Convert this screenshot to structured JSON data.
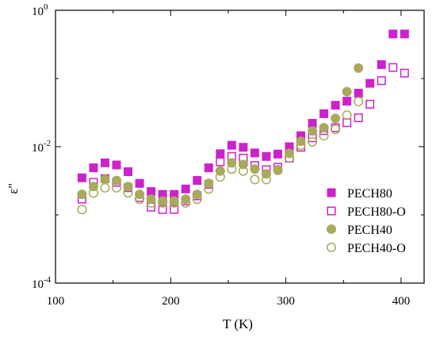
{
  "chart_data": {
    "type": "scatter",
    "title": "",
    "xlabel": "T (K)",
    "ylabel": "ε''",
    "xlim": [
      100,
      420
    ],
    "ylim": [
      0.0001,
      1
    ],
    "yscale": "log",
    "grid": false,
    "legend_position": "bottom-right",
    "x_ticks": [
      {
        "value": 100,
        "label": "100"
      },
      {
        "value": 200,
        "label": "200"
      },
      {
        "value": 300,
        "label": "300"
      },
      {
        "value": 400,
        "label": "400"
      }
    ],
    "y_ticks": [
      {
        "value": 0.0001,
        "base": "10",
        "exp": "-4"
      },
      {
        "value": 0.01,
        "base": "10",
        "exp": "-2"
      },
      {
        "value": 1,
        "base": "10",
        "exp": "0"
      }
    ],
    "series": [
      {
        "name": "PECH80",
        "marker": "square",
        "filled": true,
        "color": "#cc22cc",
        "points": [
          [
            123,
            0.0035
          ],
          [
            133,
            0.0049
          ],
          [
            143,
            0.0058
          ],
          [
            153,
            0.0054
          ],
          [
            163,
            0.0043
          ],
          [
            173,
            0.0029
          ],
          [
            183,
            0.0022
          ],
          [
            193,
            0.002
          ],
          [
            203,
            0.002
          ],
          [
            213,
            0.0024
          ],
          [
            223,
            0.0032
          ],
          [
            233,
            0.0049
          ],
          [
            243,
            0.0079
          ],
          [
            253,
            0.0105
          ],
          [
            263,
            0.0098
          ],
          [
            273,
            0.0081
          ],
          [
            283,
            0.0072
          ],
          [
            293,
            0.0078
          ],
          [
            303,
            0.01
          ],
          [
            313,
            0.0145
          ],
          [
            323,
            0.022
          ],
          [
            333,
            0.0305
          ],
          [
            343,
            0.0405
          ],
          [
            353,
            0.0465
          ],
          [
            363,
            0.061
          ],
          [
            373,
            0.085
          ],
          [
            383,
            0.16
          ],
          [
            393,
            0.45
          ],
          [
            403,
            0.45
          ]
        ]
      },
      {
        "name": "PECH80-O",
        "marker": "square",
        "filled": false,
        "color": "#cc22cc",
        "points": [
          [
            123,
            0.0017
          ],
          [
            133,
            0.003
          ],
          [
            143,
            0.0034
          ],
          [
            153,
            0.003
          ],
          [
            163,
            0.0025
          ],
          [
            173,
            0.0018
          ],
          [
            183,
            0.0013
          ],
          [
            193,
            0.0012
          ],
          [
            203,
            0.0012
          ],
          [
            213,
            0.0016
          ],
          [
            223,
            0.0019
          ],
          [
            233,
            0.0028
          ],
          [
            243,
            0.006
          ],
          [
            253,
            0.0072
          ],
          [
            263,
            0.0068
          ],
          [
            273,
            0.0053
          ],
          [
            283,
            0.0046
          ],
          [
            293,
            0.005
          ],
          [
            303,
            0.0068
          ],
          [
            313,
            0.0098
          ],
          [
            323,
            0.0135
          ],
          [
            333,
            0.0172
          ],
          [
            343,
            0.019
          ],
          [
            353,
            0.0225
          ],
          [
            363,
            0.0265
          ],
          [
            373,
            0.042
          ],
          [
            383,
            0.093
          ],
          [
            393,
            0.145
          ],
          [
            403,
            0.12
          ]
        ]
      },
      {
        "name": "PECH40",
        "marker": "circle",
        "filled": true,
        "color": "#a9a85c",
        "points": [
          [
            123,
            0.002
          ],
          [
            133,
            0.0026
          ],
          [
            143,
            0.0033
          ],
          [
            153,
            0.0032
          ],
          [
            163,
            0.0026
          ],
          [
            173,
            0.002
          ],
          [
            183,
            0.0017
          ],
          [
            193,
            0.0016
          ],
          [
            203,
            0.0016
          ],
          [
            213,
            0.0017
          ],
          [
            223,
            0.002
          ],
          [
            233,
            0.0029
          ],
          [
            243,
            0.0044
          ],
          [
            253,
            0.0058
          ],
          [
            263,
            0.0055
          ],
          [
            273,
            0.0047
          ],
          [
            283,
            0.004
          ],
          [
            293,
            0.0046
          ],
          [
            303,
            0.008
          ],
          [
            313,
            0.012
          ],
          [
            323,
            0.017
          ],
          [
            333,
            0.019
          ],
          [
            343,
            0.026
          ],
          [
            353,
            0.064
          ],
          [
            363,
            0.142
          ]
        ]
      },
      {
        "name": "PECH40-O",
        "marker": "circle",
        "filled": false,
        "color": "#a9a85c",
        "points": [
          [
            123,
            0.0012
          ],
          [
            133,
            0.0021
          ],
          [
            143,
            0.0025
          ],
          [
            153,
            0.0025
          ],
          [
            163,
            0.0021
          ],
          [
            173,
            0.0017
          ],
          [
            183,
            0.0015
          ],
          [
            193,
            0.0015
          ],
          [
            203,
            0.0015
          ],
          [
            213,
            0.0015
          ],
          [
            223,
            0.0017
          ],
          [
            233,
            0.0024
          ],
          [
            243,
            0.0036
          ],
          [
            253,
            0.0047
          ],
          [
            263,
            0.0044
          ],
          [
            273,
            0.0033
          ],
          [
            283,
            0.0033
          ],
          [
            293,
            0.0045
          ],
          [
            303,
            0.0068
          ],
          [
            313,
            0.0105
          ],
          [
            323,
            0.0118
          ],
          [
            333,
            0.0145
          ],
          [
            343,
            0.018
          ],
          [
            353,
            0.029
          ],
          [
            363,
            0.046
          ]
        ]
      }
    ]
  }
}
